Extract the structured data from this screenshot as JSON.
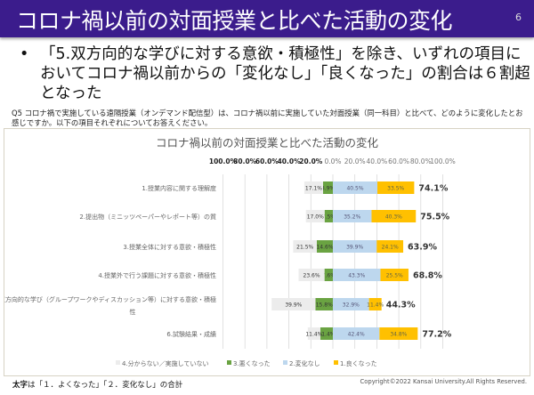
{
  "header": {
    "title": "コロナ禍以前の対面授業と比べた活動の変化",
    "page": "6"
  },
  "bullet": "「5.双方向的な学びに対する意欲・積極性」を除き、いずれの項目においてコロナ禍以前からの「変化なし」「良くなった」の割合は６割超となった",
  "question": "Q5 コロナ禍で実施している遠隔授業（オンデマンド配信型）は、コロナ禍以前に実施していた対面授業（同一科目）と比べて、どのように変化したとお感じですか。以下の項目それぞれについてお答えください。",
  "note_bold": "太字",
  "note_rest": "は「１．よくなった」「２．変化なし」の合計",
  "copyright": "Copyright©2022 Kansai University.All Rights Reserved.",
  "chart_data": {
    "type": "bar",
    "subtype": "diverging-stacked-horizontal",
    "title": "コロナ禍以前の対面授業と比べた活動の変化",
    "xlim": [
      -100,
      100
    ],
    "tick_labels": [
      "100.0%",
      "80.0%",
      "60.0%",
      "40.0%",
      "20.0%",
      "0.0%",
      "20.0%",
      "40.0%",
      "60.0%",
      "80.0%",
      "100.0%"
    ],
    "grid": true,
    "legend_position": "bottom",
    "categories": [
      "1.授業内容に関する理解度",
      "2.提出物（ミニッツペーパーやレポート等）の質",
      "3.授業全体に対する意欲・積極性",
      "4.授業外で行う課題に対する意欲・積極性",
      "5.双方向的な学び（グループワークやディスカッション等）に対する意欲・積極性",
      "6.試験結果・成績"
    ],
    "series": [
      {
        "name": "4.分からない／実施していない",
        "side": "left",
        "color": "#ececec",
        "values": [
          17.1,
          17.0,
          21.5,
          23.6,
          39.9,
          11.4
        ]
      },
      {
        "name": "3.悪くなった",
        "side": "left",
        "color": "#6aa342",
        "values": [
          8.9,
          7.5,
          14.6,
          7.6,
          15.8,
          11.4
        ]
      },
      {
        "name": "2.変化なし",
        "side": "right",
        "color": "#bdd7ee",
        "values": [
          40.5,
          35.2,
          39.9,
          43.3,
          32.9,
          42.4
        ]
      },
      {
        "name": "1.良くなった",
        "side": "right",
        "color": "#ffc000",
        "values": [
          33.5,
          40.3,
          24.1,
          25.5,
          11.4,
          34.8
        ]
      }
    ],
    "totals": [
      "74.1%",
      "75.5%",
      "63.9%",
      "68.8%",
      "44.3%",
      "77.2%"
    ]
  }
}
